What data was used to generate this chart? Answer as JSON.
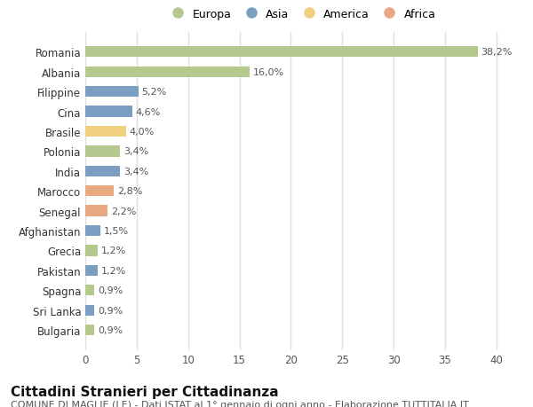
{
  "categories": [
    "Romania",
    "Albania",
    "Filippine",
    "Cina",
    "Brasile",
    "Polonia",
    "India",
    "Marocco",
    "Senegal",
    "Afghanistan",
    "Grecia",
    "Pakistan",
    "Spagna",
    "Sri Lanka",
    "Bulgaria"
  ],
  "values": [
    38.2,
    16.0,
    5.2,
    4.6,
    4.0,
    3.4,
    3.4,
    2.8,
    2.2,
    1.5,
    1.2,
    1.2,
    0.9,
    0.9,
    0.9
  ],
  "labels": [
    "38,2%",
    "16,0%",
    "5,2%",
    "4,6%",
    "4,0%",
    "3,4%",
    "3,4%",
    "2,8%",
    "2,2%",
    "1,5%",
    "1,2%",
    "1,2%",
    "0,9%",
    "0,9%",
    "0,9%"
  ],
  "colors": [
    "#b5c98e",
    "#b5c98e",
    "#7a9fc2",
    "#7a9fc2",
    "#f0d080",
    "#b5c98e",
    "#7a9fc2",
    "#e8a882",
    "#e8a882",
    "#7a9fc2",
    "#b5c98e",
    "#7a9fc2",
    "#b5c98e",
    "#7a9fc2",
    "#b5c98e"
  ],
  "legend_labels": [
    "Europa",
    "Asia",
    "America",
    "Africa"
  ],
  "legend_colors": [
    "#b5c98e",
    "#7a9fc2",
    "#f0d080",
    "#e8a882"
  ],
  "title": "Cittadini Stranieri per Cittadinanza",
  "subtitle": "COMUNE DI MAGLIE (LE) - Dati ISTAT al 1° gennaio di ogni anno - Elaborazione TUTTITALIA.IT",
  "xlim": [
    0,
    42
  ],
  "xticks": [
    0,
    5,
    10,
    15,
    20,
    25,
    30,
    35,
    40
  ],
  "bg_color": "#ffffff",
  "grid_color": "#e0e0e0",
  "title_fontsize": 11,
  "subtitle_fontsize": 8,
  "label_fontsize": 8,
  "tick_fontsize": 8.5,
  "legend_fontsize": 9
}
